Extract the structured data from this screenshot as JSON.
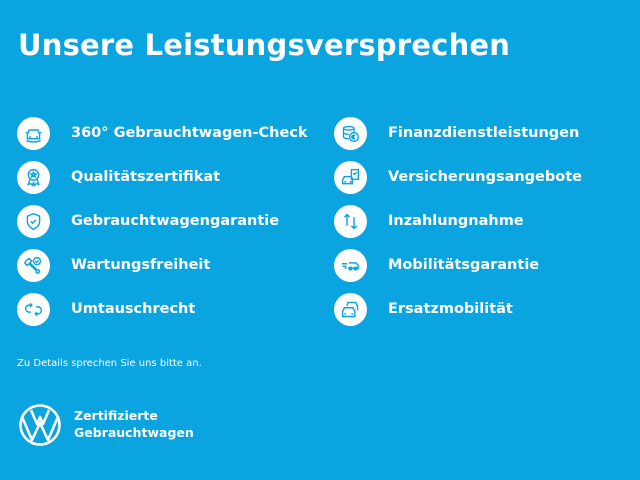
{
  "title": "Unsere Leistungsversprechen",
  "colors": {
    "background": "#0aa4e0",
    "icon_circle": "#ffffff",
    "icon_stroke": "#0aa4e0"
  },
  "left_items": [
    {
      "label": "360° Gebrauchtwagen-Check",
      "icon": "car-check-icon"
    },
    {
      "label": "Qualitätszertifikat",
      "icon": "award-rosette-icon"
    },
    {
      "label": "Gebrauchtwagengarantie",
      "icon": "shield-check-icon"
    },
    {
      "label": "Wartungsfreiheit",
      "icon": "wrench-check-icon"
    },
    {
      "label": "Umtauschrecht",
      "icon": "exchange-arrows-icon"
    }
  ],
  "right_items": [
    {
      "label": "Finanzdienstleistungen",
      "icon": "coins-euro-icon"
    },
    {
      "label": "Versicherungsangebote",
      "icon": "car-document-icon"
    },
    {
      "label": "Inzahlungnahme",
      "icon": "up-down-arrows-icon"
    },
    {
      "label": "Mobilitätsgarantie",
      "icon": "moving-car-icon"
    },
    {
      "label": "Ersatzmobilität",
      "icon": "two-cars-icon"
    }
  ],
  "note": "Zu Details sprechen Sie uns bitte an.",
  "brand": {
    "line1": "Zertifizierte",
    "line2": "Gebrauchtwagen",
    "logo_text": "VW"
  }
}
